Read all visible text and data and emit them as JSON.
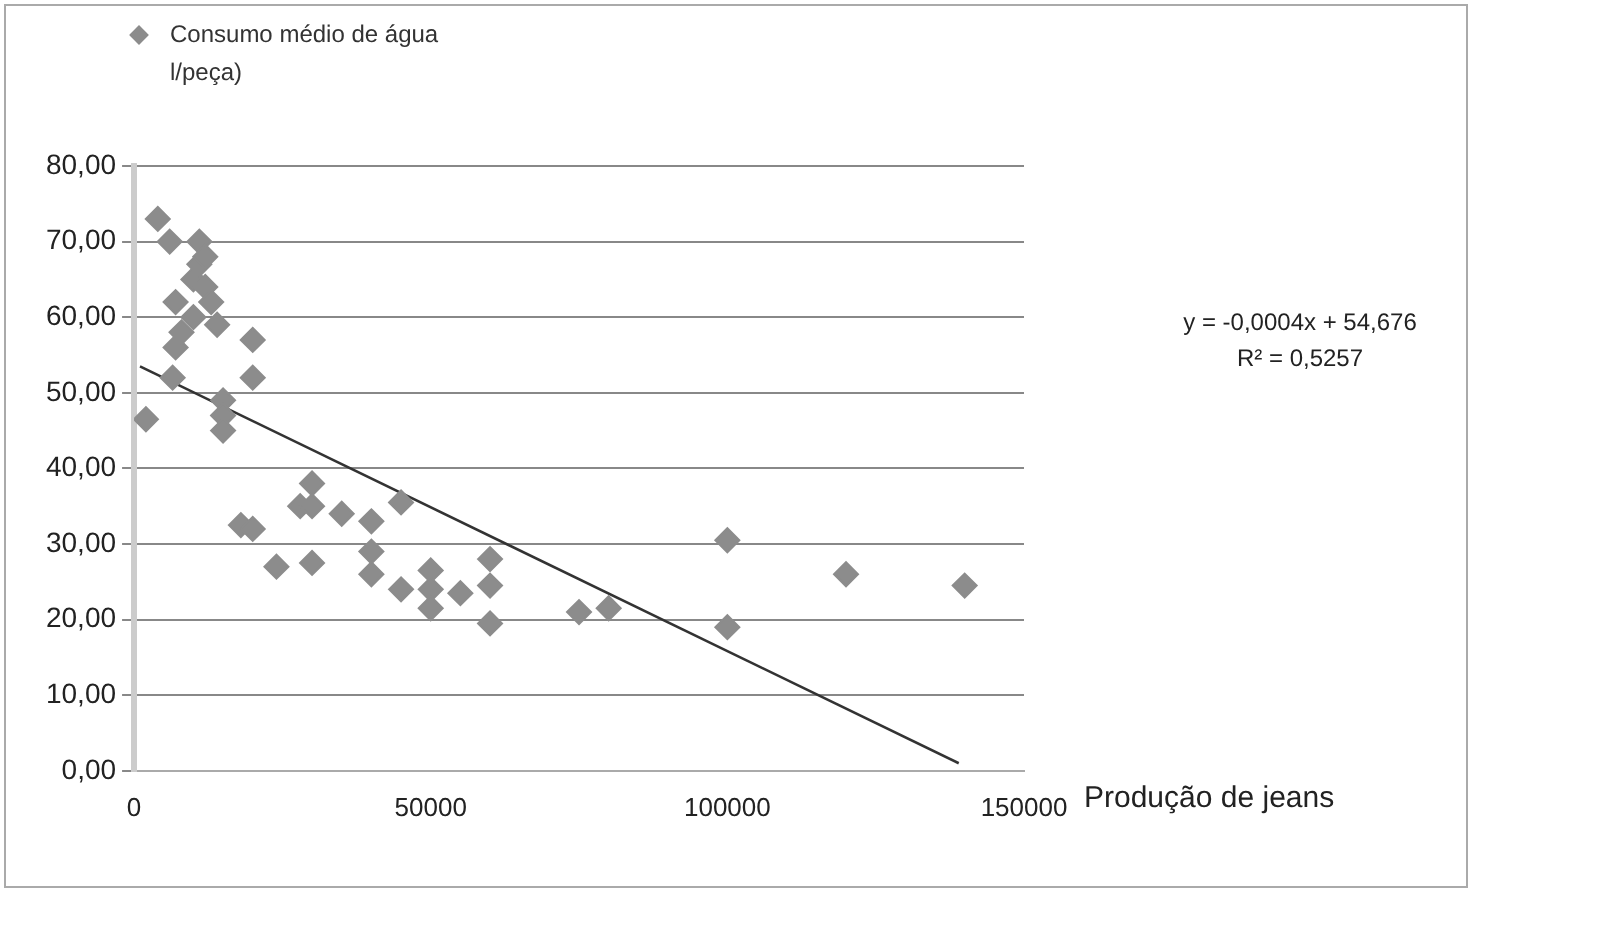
{
  "chart_data": {
    "type": "scatter",
    "xlabel": "Produção de jeans",
    "annotations": [
      "y = -0,0004x + 54,676",
      "R² = 0,5257"
    ],
    "xlim": [
      0,
      150000
    ],
    "xticks": [
      0,
      50000,
      100000,
      150000
    ],
    "ylim": [
      0,
      80
    ],
    "yticks": [
      {
        "value": 0,
        "label": "0,00"
      },
      {
        "value": 10,
        "label": "10,00"
      },
      {
        "value": 20,
        "label": "20,00"
      },
      {
        "value": 30,
        "label": "30,00"
      },
      {
        "value": 40,
        "label": "40,00"
      },
      {
        "value": 50,
        "label": "50,00"
      },
      {
        "value": 60,
        "label": "60,00"
      },
      {
        "value": 70,
        "label": "70,00"
      },
      {
        "value": 80,
        "label": "80,00"
      }
    ],
    "grid": "y",
    "legend": "top left",
    "marker": "diamond",
    "series": [
      {
        "name": "Consumo médio de água l/peça)",
        "color": "#8c8c8c",
        "x": [
          2000,
          4000,
          6000,
          7000,
          7000,
          6500,
          8000,
          10000,
          10000,
          11000,
          11000,
          12000,
          12000,
          13000,
          14000,
          15000,
          15000,
          15000,
          20000,
          20000,
          18000,
          20000,
          24000,
          28000,
          30000,
          30000,
          30000,
          35000,
          40000,
          40000,
          40000,
          45000,
          45000,
          50000,
          50000,
          50000,
          55000,
          60000,
          60000,
          60000,
          75000,
          80000,
          100000,
          100000,
          120000,
          140000
        ],
        "values": [
          46.5,
          73,
          70,
          62,
          56,
          52,
          58,
          60,
          65,
          67,
          70,
          68,
          64,
          62,
          59,
          49,
          47,
          45,
          57,
          52,
          32.5,
          32,
          27,
          35,
          35,
          38,
          27.5,
          34,
          33,
          29,
          26,
          35.5,
          24,
          26.5,
          24,
          21.5,
          23.5,
          28,
          24.5,
          19.5,
          21,
          21.5,
          30.5,
          19,
          26,
          24.5
        ]
      },
      {
        "type": "line",
        "marker": "none",
        "line_style": "solid",
        "color": "#333333",
        "x": [
          1000,
          139000
        ],
        "values": [
          53.5,
          1
        ]
      }
    ]
  }
}
